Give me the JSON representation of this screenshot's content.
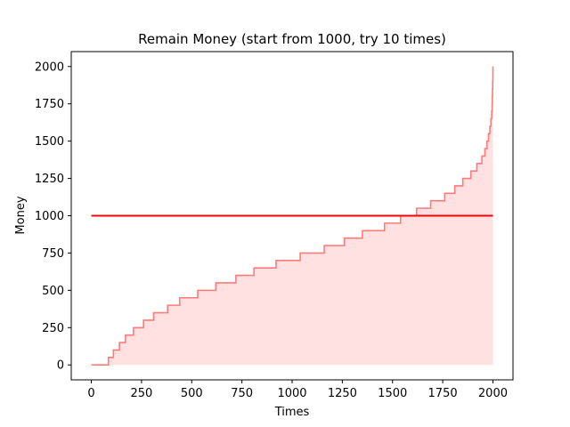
{
  "chart_data": {
    "type": "area",
    "title": "Remain Money (start from 1000, try 10 times)",
    "xlabel": "Times",
    "ylabel": "Money",
    "xlim": [
      -100,
      2100
    ],
    "ylim": [
      -100,
      2100
    ],
    "xticks": [
      0,
      250,
      500,
      750,
      1000,
      1250,
      1500,
      1750,
      2000
    ],
    "yticks": [
      0,
      250,
      500,
      750,
      1000,
      1250,
      1500,
      1750,
      2000
    ],
    "grid": false,
    "series": [
      {
        "color": "#ff7b7b",
        "fill_color": "#ffe1e1",
        "style": "step-area",
        "points": [
          [
            0,
            0
          ],
          [
            85,
            0
          ],
          [
            85,
            50
          ],
          [
            110,
            50
          ],
          [
            110,
            100
          ],
          [
            140,
            100
          ],
          [
            140,
            150
          ],
          [
            170,
            150
          ],
          [
            170,
            200
          ],
          [
            210,
            200
          ],
          [
            210,
            250
          ],
          [
            260,
            250
          ],
          [
            260,
            300
          ],
          [
            310,
            300
          ],
          [
            310,
            350
          ],
          [
            380,
            350
          ],
          [
            380,
            400
          ],
          [
            440,
            400
          ],
          [
            440,
            450
          ],
          [
            530,
            450
          ],
          [
            530,
            500
          ],
          [
            620,
            500
          ],
          [
            620,
            550
          ],
          [
            720,
            550
          ],
          [
            720,
            600
          ],
          [
            810,
            600
          ],
          [
            810,
            650
          ],
          [
            920,
            650
          ],
          [
            920,
            700
          ],
          [
            1040,
            700
          ],
          [
            1040,
            750
          ],
          [
            1160,
            750
          ],
          [
            1160,
            800
          ],
          [
            1260,
            800
          ],
          [
            1260,
            850
          ],
          [
            1350,
            850
          ],
          [
            1350,
            900
          ],
          [
            1460,
            900
          ],
          [
            1460,
            950
          ],
          [
            1540,
            950
          ],
          [
            1540,
            1000
          ],
          [
            1620,
            1000
          ],
          [
            1620,
            1050
          ],
          [
            1690,
            1050
          ],
          [
            1690,
            1100
          ],
          [
            1760,
            1100
          ],
          [
            1760,
            1150
          ],
          [
            1810,
            1150
          ],
          [
            1810,
            1200
          ],
          [
            1850,
            1200
          ],
          [
            1850,
            1250
          ],
          [
            1890,
            1250
          ],
          [
            1890,
            1300
          ],
          [
            1920,
            1300
          ],
          [
            1920,
            1350
          ],
          [
            1945,
            1350
          ],
          [
            1945,
            1400
          ],
          [
            1960,
            1400
          ],
          [
            1960,
            1450
          ],
          [
            1970,
            1450
          ],
          [
            1970,
            1500
          ],
          [
            1978,
            1500
          ],
          [
            1978,
            1550
          ],
          [
            1985,
            1550
          ],
          [
            1985,
            1600
          ],
          [
            1990,
            1600
          ],
          [
            1990,
            1650
          ],
          [
            1994,
            1650
          ],
          [
            1994,
            1700
          ],
          [
            1996,
            1700
          ],
          [
            1996,
            1750
          ],
          [
            1997,
            1750
          ],
          [
            1997,
            1800
          ],
          [
            1998,
            1800
          ],
          [
            1998,
            1850
          ],
          [
            1999,
            1850
          ],
          [
            1999,
            1900
          ],
          [
            2000,
            1900
          ],
          [
            2000,
            2000
          ]
        ]
      },
      {
        "color": "#ff0000",
        "style": "line",
        "points": [
          [
            0,
            1000
          ],
          [
            2000,
            1000
          ]
        ]
      }
    ]
  }
}
